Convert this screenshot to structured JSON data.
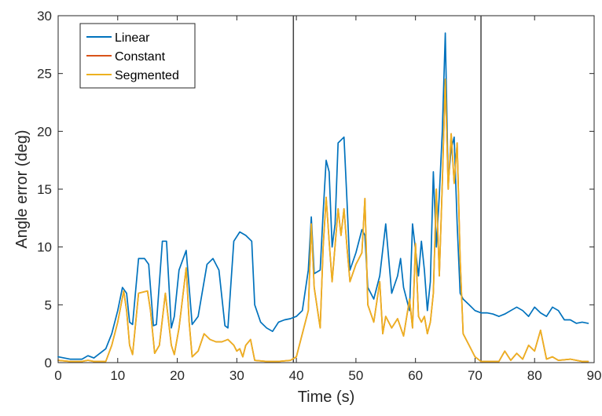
{
  "chart_data": {
    "type": "line",
    "title": "",
    "xlabel": "Time (s)",
    "ylabel": "Angle error (deg)",
    "xlim": [
      0,
      90
    ],
    "ylim": [
      0,
      30
    ],
    "xticks": [
      0,
      10,
      20,
      30,
      40,
      50,
      60,
      70,
      80,
      90
    ],
    "yticks": [
      0,
      5,
      10,
      15,
      20,
      25,
      30
    ],
    "grid": false,
    "legend_position": "top-left",
    "vertical_lines": [
      39.5,
      71
    ],
    "series": [
      {
        "name": "Linear",
        "color": "#0072BD",
        "points": [
          [
            0,
            0.5
          ],
          [
            2,
            0.3
          ],
          [
            4,
            0.3
          ],
          [
            5,
            0.6
          ],
          [
            6,
            0.4
          ],
          [
            8,
            1.2
          ],
          [
            9,
            2.5
          ],
          [
            10,
            4.5
          ],
          [
            10.8,
            6.5
          ],
          [
            11.5,
            6.0
          ],
          [
            12,
            3.5
          ],
          [
            12.5,
            3.3
          ],
          [
            13.5,
            9.0
          ],
          [
            14.5,
            9.0
          ],
          [
            15.2,
            8.5
          ],
          [
            16,
            3.2
          ],
          [
            16.5,
            3.3
          ],
          [
            17.5,
            10.5
          ],
          [
            18.2,
            10.5
          ],
          [
            19,
            3.0
          ],
          [
            19.5,
            4.0
          ],
          [
            20.3,
            8.0
          ],
          [
            21.5,
            9.7
          ],
          [
            22,
            6.5
          ],
          [
            22.5,
            3.3
          ],
          [
            23.5,
            4.0
          ],
          [
            25,
            8.5
          ],
          [
            26,
            9.0
          ],
          [
            27,
            8.0
          ],
          [
            28,
            3.2
          ],
          [
            28.5,
            3.0
          ],
          [
            29.5,
            10.5
          ],
          [
            30.5,
            11.3
          ],
          [
            31.5,
            11.0
          ],
          [
            32.5,
            10.5
          ],
          [
            33,
            5.0
          ],
          [
            34,
            3.5
          ],
          [
            35,
            3.0
          ],
          [
            36,
            2.7
          ],
          [
            37,
            3.5
          ],
          [
            38,
            3.7
          ],
          [
            39,
            3.8
          ],
          [
            40,
            4.0
          ],
          [
            41,
            4.5
          ],
          [
            42,
            8.0
          ],
          [
            42.5,
            12.6
          ],
          [
            43,
            7.7
          ],
          [
            44,
            8.0
          ],
          [
            44.5,
            13.0
          ],
          [
            45,
            17.5
          ],
          [
            45.5,
            16.5
          ],
          [
            46,
            10.0
          ],
          [
            46.5,
            12.0
          ],
          [
            47,
            19.0
          ],
          [
            48,
            19.5
          ],
          [
            48.5,
            14.0
          ],
          [
            49,
            8.0
          ],
          [
            50,
            9.5
          ],
          [
            51,
            11.5
          ],
          [
            51.5,
            11.0
          ],
          [
            52,
            6.5
          ],
          [
            53,
            5.5
          ],
          [
            54,
            7.5
          ],
          [
            55,
            12.0
          ],
          [
            56,
            6.0
          ],
          [
            57,
            7.5
          ],
          [
            57.5,
            9.0
          ],
          [
            58,
            6.5
          ],
          [
            59,
            4.5
          ],
          [
            59.5,
            12.0
          ],
          [
            60.5,
            7.5
          ],
          [
            61,
            10.5
          ],
          [
            61.5,
            8.0
          ],
          [
            62,
            4.5
          ],
          [
            62.5,
            7.0
          ],
          [
            63,
            16.5
          ],
          [
            63.5,
            10.0
          ],
          [
            64,
            14.5
          ],
          [
            64.5,
            20.0
          ],
          [
            65,
            28.5
          ],
          [
            65.5,
            15.5
          ],
          [
            66,
            18.5
          ],
          [
            66.5,
            19.5
          ],
          [
            67,
            12.0
          ],
          [
            67.5,
            6.0
          ],
          [
            68,
            5.5
          ],
          [
            69,
            5.0
          ],
          [
            70,
            4.5
          ],
          [
            71,
            4.3
          ],
          [
            72,
            4.3
          ],
          [
            73,
            4.2
          ],
          [
            74,
            4.0
          ],
          [
            75,
            4.2
          ],
          [
            76,
            4.5
          ],
          [
            77,
            4.8
          ],
          [
            78,
            4.5
          ],
          [
            79,
            4.0
          ],
          [
            80,
            4.8
          ],
          [
            81,
            4.3
          ],
          [
            82,
            4.0
          ],
          [
            83,
            4.8
          ],
          [
            84,
            4.5
          ],
          [
            85,
            3.7
          ],
          [
            86,
            3.7
          ],
          [
            87,
            3.4
          ],
          [
            88,
            3.5
          ],
          [
            89,
            3.4
          ]
        ]
      },
      {
        "name": "Constant",
        "color": "#D95319",
        "points": [
          [
            0,
            0.2
          ],
          [
            2,
            0.1
          ],
          [
            4,
            0.1
          ],
          [
            5,
            0.2
          ],
          [
            6,
            0.1
          ],
          [
            8,
            0.1
          ],
          [
            9,
            1.5
          ],
          [
            10,
            3.5
          ],
          [
            11,
            6.2
          ],
          [
            11.5,
            4.5
          ],
          [
            12,
            1.5
          ],
          [
            12.5,
            0.7
          ],
          [
            13.5,
            6.0
          ],
          [
            15,
            6.2
          ],
          [
            15.5,
            4.5
          ],
          [
            16.2,
            0.8
          ],
          [
            17,
            1.5
          ],
          [
            18,
            6.0
          ],
          [
            19,
            1.5
          ],
          [
            19.5,
            0.7
          ],
          [
            20.3,
            3.0
          ],
          [
            21.5,
            8.2
          ],
          [
            22,
            3.5
          ],
          [
            22.5,
            0.5
          ],
          [
            23.5,
            1.0
          ],
          [
            24.5,
            2.5
          ],
          [
            25.5,
            2.0
          ],
          [
            26.5,
            1.8
          ],
          [
            27.5,
            1.8
          ],
          [
            28.5,
            2.0
          ],
          [
            29.5,
            1.5
          ],
          [
            30,
            1.0
          ],
          [
            30.5,
            1.2
          ],
          [
            31,
            0.5
          ],
          [
            31.5,
            1.5
          ],
          [
            32.3,
            2.0
          ],
          [
            33,
            0.2
          ],
          [
            35,
            0.1
          ],
          [
            37,
            0.1
          ],
          [
            39,
            0.2
          ],
          [
            40,
            0.5
          ],
          [
            41,
            2.5
          ],
          [
            42,
            4.5
          ],
          [
            42.5,
            12.0
          ],
          [
            43,
            6.5
          ],
          [
            44,
            3.0
          ],
          [
            44.5,
            10.0
          ],
          [
            45,
            14.3
          ],
          [
            45.5,
            10.5
          ],
          [
            46,
            7.0
          ],
          [
            47,
            13.3
          ],
          [
            47.5,
            11.0
          ],
          [
            48,
            13.3
          ],
          [
            48.5,
            10.0
          ],
          [
            49,
            7.0
          ],
          [
            50,
            8.5
          ],
          [
            51,
            9.5
          ],
          [
            51.5,
            14.2
          ],
          [
            52,
            5.0
          ],
          [
            53,
            3.5
          ],
          [
            54,
            7.0
          ],
          [
            54.5,
            2.5
          ],
          [
            55,
            4.0
          ],
          [
            56,
            3.0
          ],
          [
            57,
            3.8
          ],
          [
            58,
            2.3
          ],
          [
            59,
            5.5
          ],
          [
            59.5,
            3.0
          ],
          [
            60,
            10.3
          ],
          [
            60.5,
            4.0
          ],
          [
            61,
            3.5
          ],
          [
            61.5,
            4.0
          ],
          [
            62,
            2.5
          ],
          [
            62.5,
            3.5
          ],
          [
            63,
            6.0
          ],
          [
            63.5,
            15.0
          ],
          [
            64,
            7.5
          ],
          [
            64.5,
            15.5
          ],
          [
            65,
            24.5
          ],
          [
            65.5,
            15.0
          ],
          [
            66,
            19.8
          ],
          [
            66.5,
            15.5
          ],
          [
            67,
            19.0
          ],
          [
            67.5,
            9.0
          ],
          [
            68,
            2.5
          ],
          [
            69,
            1.5
          ],
          [
            70,
            0.5
          ],
          [
            71,
            0.1
          ],
          [
            72,
            0.1
          ],
          [
            74,
            0.1
          ],
          [
            75,
            1.0
          ],
          [
            76,
            0.2
          ],
          [
            77,
            0.8
          ],
          [
            78,
            0.3
          ],
          [
            79,
            1.5
          ],
          [
            80,
            1.0
          ],
          [
            81,
            2.8
          ],
          [
            82,
            0.3
          ],
          [
            83,
            0.5
          ],
          [
            84,
            0.2
          ],
          [
            86,
            0.3
          ],
          [
            88,
            0.1
          ],
          [
            89,
            0.1
          ]
        ]
      },
      {
        "name": "Segmented",
        "color": "#EDB120",
        "points": [
          [
            0,
            0.2
          ],
          [
            2,
            0.1
          ],
          [
            4,
            0.1
          ],
          [
            5,
            0.2
          ],
          [
            6,
            0.1
          ],
          [
            8,
            0.1
          ],
          [
            9,
            1.5
          ],
          [
            10,
            3.5
          ],
          [
            11,
            6.2
          ],
          [
            11.5,
            4.5
          ],
          [
            12,
            1.5
          ],
          [
            12.5,
            0.7
          ],
          [
            13.5,
            6.0
          ],
          [
            15,
            6.2
          ],
          [
            15.5,
            4.5
          ],
          [
            16.2,
            0.8
          ],
          [
            17,
            1.5
          ],
          [
            18,
            6.0
          ],
          [
            19,
            1.5
          ],
          [
            19.5,
            0.7
          ],
          [
            20.3,
            3.0
          ],
          [
            21.5,
            8.2
          ],
          [
            22,
            3.5
          ],
          [
            22.5,
            0.5
          ],
          [
            23.5,
            1.0
          ],
          [
            24.5,
            2.5
          ],
          [
            25.5,
            2.0
          ],
          [
            26.5,
            1.8
          ],
          [
            27.5,
            1.8
          ],
          [
            28.5,
            2.0
          ],
          [
            29.5,
            1.5
          ],
          [
            30,
            1.0
          ],
          [
            30.5,
            1.2
          ],
          [
            31,
            0.5
          ],
          [
            31.5,
            1.5
          ],
          [
            32.3,
            2.0
          ],
          [
            33,
            0.2
          ],
          [
            35,
            0.1
          ],
          [
            37,
            0.1
          ],
          [
            39,
            0.2
          ],
          [
            40,
            0.5
          ],
          [
            41,
            2.5
          ],
          [
            42,
            4.5
          ],
          [
            42.5,
            12.0
          ],
          [
            43,
            6.5
          ],
          [
            44,
            3.0
          ],
          [
            44.5,
            10.0
          ],
          [
            45,
            14.3
          ],
          [
            45.5,
            10.5
          ],
          [
            46,
            7.0
          ],
          [
            47,
            13.3
          ],
          [
            47.5,
            11.0
          ],
          [
            48,
            13.3
          ],
          [
            48.5,
            10.0
          ],
          [
            49,
            7.0
          ],
          [
            50,
            8.5
          ],
          [
            51,
            9.5
          ],
          [
            51.5,
            14.2
          ],
          [
            52,
            5.0
          ],
          [
            53,
            3.5
          ],
          [
            54,
            7.0
          ],
          [
            54.5,
            2.5
          ],
          [
            55,
            4.0
          ],
          [
            56,
            3.0
          ],
          [
            57,
            3.8
          ],
          [
            58,
            2.3
          ],
          [
            59,
            5.5
          ],
          [
            59.5,
            3.0
          ],
          [
            60,
            10.3
          ],
          [
            60.5,
            4.0
          ],
          [
            61,
            3.5
          ],
          [
            61.5,
            4.0
          ],
          [
            62,
            2.5
          ],
          [
            62.5,
            3.5
          ],
          [
            63,
            6.0
          ],
          [
            63.5,
            15.0
          ],
          [
            64,
            7.5
          ],
          [
            64.5,
            15.5
          ],
          [
            65,
            24.5
          ],
          [
            65.5,
            15.0
          ],
          [
            66,
            19.8
          ],
          [
            66.5,
            15.5
          ],
          [
            67,
            19.0
          ],
          [
            67.5,
            9.0
          ],
          [
            68,
            2.5
          ],
          [
            69,
            1.5
          ],
          [
            70,
            0.5
          ],
          [
            71,
            0.1
          ],
          [
            72,
            0.1
          ],
          [
            74,
            0.1
          ],
          [
            75,
            1.0
          ],
          [
            76,
            0.2
          ],
          [
            77,
            0.8
          ],
          [
            78,
            0.3
          ],
          [
            79,
            1.5
          ],
          [
            80,
            1.0
          ],
          [
            81,
            2.8
          ],
          [
            82,
            0.3
          ],
          [
            83,
            0.5
          ],
          [
            84,
            0.2
          ],
          [
            86,
            0.3
          ],
          [
            88,
            0.1
          ],
          [
            89,
            0.1
          ]
        ]
      }
    ]
  }
}
